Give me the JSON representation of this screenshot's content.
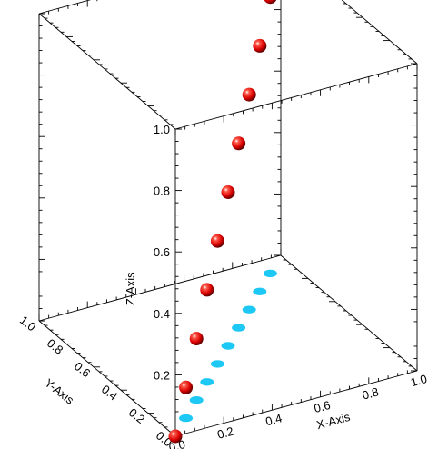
{
  "chart_data": {
    "type": "scatter",
    "title": "",
    "projection": "3d",
    "xlabel": "X-Axis",
    "ylabel": "Y-Axis",
    "zlabel": "Z-Axis",
    "xlim": [
      0,
      1
    ],
    "ylim": [
      0,
      1
    ],
    "zlim": [
      0,
      1
    ],
    "x_ticks": [
      "0.0",
      "0.2",
      "0.4",
      "0.6",
      "0.8",
      "1.0"
    ],
    "y_ticks": [
      "0.0",
      "0.2",
      "0.4",
      "0.6",
      "0.8",
      "1.0"
    ],
    "z_ticks": [
      "0.2",
      "0.4",
      "0.6",
      "0.8",
      "1.0"
    ],
    "grid": false,
    "series": [
      {
        "marker": "sphere",
        "color": "#dd0000",
        "points": [
          {
            "x": 0.0,
            "y": 0.0,
            "z": 0.0
          },
          {
            "x": 0.1,
            "y": 0.1,
            "z": 0.1
          },
          {
            "x": 0.2,
            "y": 0.2,
            "z": 0.2
          },
          {
            "x": 0.3,
            "y": 0.3,
            "z": 0.3
          },
          {
            "x": 0.4,
            "y": 0.4,
            "z": 0.4
          },
          {
            "x": 0.5,
            "y": 0.5,
            "z": 0.5
          },
          {
            "x": 0.6,
            "y": 0.6,
            "z": 0.6
          },
          {
            "x": 0.7,
            "y": 0.7,
            "z": 0.7
          },
          {
            "x": 0.8,
            "y": 0.8,
            "z": 0.8
          },
          {
            "x": 0.9,
            "y": 0.9,
            "z": 0.9
          }
        ]
      }
    ],
    "shadow": {
      "plane": "z=0",
      "color": "#1ec8f5"
    }
  }
}
